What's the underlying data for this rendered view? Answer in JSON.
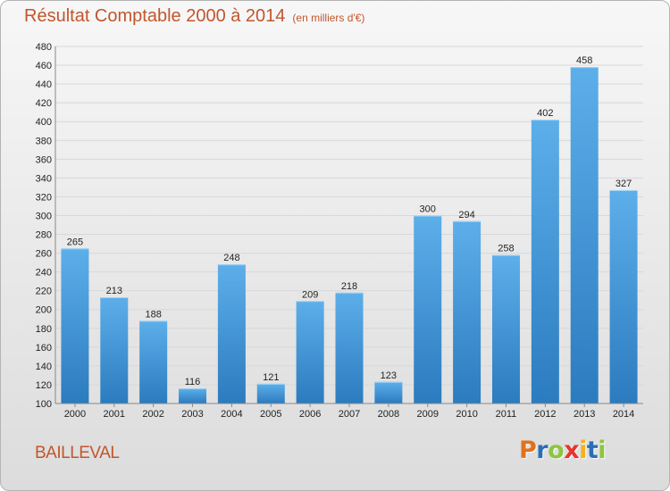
{
  "header": {
    "title": "Résultat Comptable 2000 à 2014",
    "subtitle": "(en milliers d'€)"
  },
  "footer": {
    "commune": "BAILLEVAL",
    "logo": {
      "letters": [
        "P",
        "r",
        "o",
        "x",
        "i",
        "t",
        "i"
      ],
      "colors": [
        "#e2711d",
        "#2a6fb5",
        "#8cc63f",
        "#e8332f",
        "#f2b21b",
        "#2a6fb5",
        "#8cc63f"
      ]
    }
  },
  "colors": {
    "bar_light": "#5dafea",
    "bar_dark": "#2b7bbf",
    "grid": "#d8d8d8",
    "axis": "#888888"
  },
  "chart_data": {
    "type": "bar",
    "categories": [
      "2000",
      "2001",
      "2002",
      "2003",
      "2004",
      "2005",
      "2006",
      "2007",
      "2008",
      "2009",
      "2010",
      "2011",
      "2012",
      "2013",
      "2014"
    ],
    "values": [
      265,
      213,
      188,
      116,
      248,
      121,
      209,
      218,
      123,
      300,
      294,
      258,
      402,
      458,
      327
    ],
    "ylim": [
      100,
      480
    ],
    "yticks": [
      100,
      120,
      140,
      160,
      180,
      200,
      220,
      240,
      260,
      280,
      300,
      320,
      340,
      360,
      380,
      400,
      420,
      440,
      460,
      480
    ],
    "title": "Résultat Comptable 2000 à 2014",
    "subtitle": "(en milliers d'€)",
    "grid": true
  }
}
